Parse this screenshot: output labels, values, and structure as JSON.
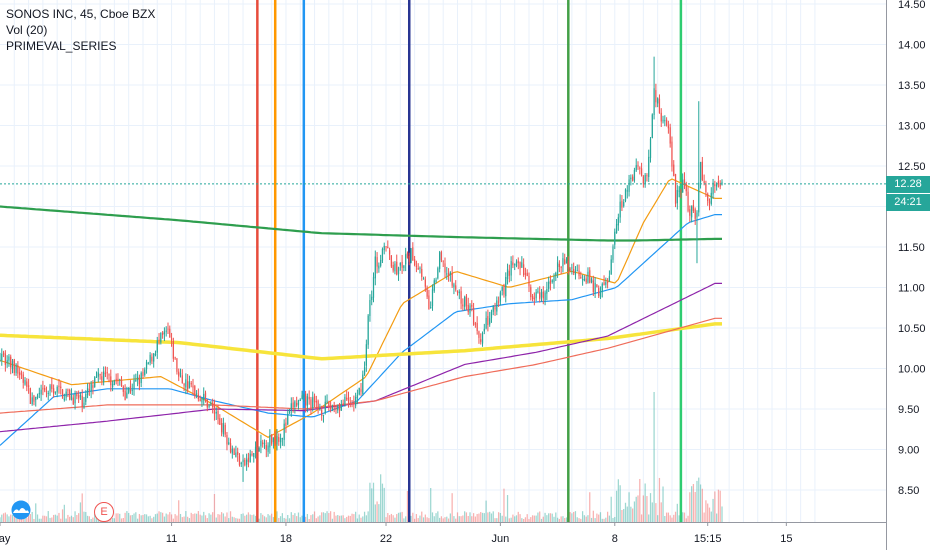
{
  "legend": {
    "symbol_line": "SONOS INC, 45, Cboe BZX",
    "volume_line": "Vol (20)",
    "series_line": "PRIMEVAL_SERIES"
  },
  "price_tags": {
    "last_price": "12.28",
    "countdown": "24:21"
  },
  "icons": {
    "logo": "tradingview-cloud-icon",
    "earnings": "E"
  },
  "colors": {
    "up": "#26a69a",
    "down": "#ef5350",
    "grid": "#e9f1fb",
    "ema_orange": "#f39c12",
    "ema_blue": "#2196f3",
    "sma_green": "#2e9e4e",
    "sma_yellow": "#f7e43b",
    "sma_purple": "#8e24aa",
    "sma_red": "#ef6c5a"
  },
  "chart_data": {
    "type": "candlestick",
    "title": "SONOS INC, 45, Cboe BZX",
    "ylim": [
      8.1,
      14.55
    ],
    "y_ticks": [
      "14.50",
      "14.00",
      "13.50",
      "13.00",
      "12.50",
      "12.00",
      "11.50",
      "11.00",
      "10.50",
      "10.00",
      "9.50",
      "9.00",
      "8.50"
    ],
    "x_ticks": [
      {
        "label": "May",
        "bar": 0
      },
      {
        "label": "11",
        "bar": 96
      },
      {
        "label": "18",
        "bar": 160
      },
      {
        "label": "22",
        "bar": 216
      },
      {
        "label": "Jun",
        "bar": 280
      },
      {
        "label": "8",
        "bar": 344
      },
      {
        "label": "15:15",
        "bar": 396
      },
      {
        "label": "15",
        "bar": 440
      }
    ],
    "bars_visible": 404,
    "anchors": [
      [
        0,
        10.2
      ],
      [
        12,
        9.9
      ],
      [
        18,
        9.6
      ],
      [
        30,
        9.75
      ],
      [
        46,
        9.6
      ],
      [
        56,
        9.9
      ],
      [
        66,
        9.85
      ],
      [
        70,
        9.7
      ],
      [
        80,
        9.9
      ],
      [
        88,
        10.3
      ],
      [
        94,
        10.45
      ],
      [
        100,
        9.9
      ],
      [
        110,
        9.7
      ],
      [
        118,
        9.55
      ],
      [
        124,
        9.3
      ],
      [
        130,
        9.0
      ],
      [
        136,
        8.8
      ],
      [
        142,
        8.95
      ],
      [
        150,
        9.1
      ],
      [
        158,
        9.2
      ],
      [
        164,
        9.55
      ],
      [
        172,
        9.6
      ],
      [
        180,
        9.5
      ],
      [
        190,
        9.55
      ],
      [
        200,
        9.6
      ],
      [
        204,
        10.0
      ],
      [
        206,
        10.6
      ],
      [
        210,
        11.3
      ],
      [
        216,
        11.45
      ],
      [
        222,
        11.2
      ],
      [
        230,
        11.4
      ],
      [
        236,
        11.2
      ],
      [
        240,
        10.7
      ],
      [
        246,
        11.35
      ],
      [
        252,
        11.1
      ],
      [
        258,
        10.85
      ],
      [
        264,
        10.7
      ],
      [
        268,
        10.3
      ],
      [
        272,
        10.55
      ],
      [
        276,
        10.7
      ],
      [
        280,
        10.85
      ],
      [
        286,
        11.3
      ],
      [
        292,
        11.25
      ],
      [
        298,
        10.9
      ],
      [
        304,
        10.85
      ],
      [
        310,
        11.2
      ],
      [
        316,
        11.3
      ],
      [
        322,
        11.2
      ],
      [
        328,
        11.15
      ],
      [
        334,
        10.95
      ],
      [
        340,
        11.05
      ],
      [
        346,
        11.9
      ],
      [
        350,
        12.2
      ],
      [
        356,
        12.5
      ],
      [
        362,
        12.3
      ],
      [
        366,
        13.4
      ],
      [
        370,
        13.1
      ],
      [
        374,
        12.9
      ],
      [
        378,
        12.1
      ],
      [
        382,
        12.3
      ],
      [
        386,
        11.9
      ],
      [
        390,
        11.95
      ],
      [
        392,
        12.5
      ],
      [
        396,
        12.05
      ],
      [
        400,
        12.28
      ]
    ],
    "wick_spikes": [
      {
        "bar": 366,
        "high": 13.85
      },
      {
        "bar": 391,
        "high": 13.3
      },
      {
        "bar": 390,
        "low": 11.3
      },
      {
        "bar": 136,
        "low": 8.6
      }
    ],
    "series": [
      {
        "key": "ema_orange",
        "points": [
          [
            0,
            10.1
          ],
          [
            40,
            9.8
          ],
          [
            90,
            9.9
          ],
          [
            120,
            9.55
          ],
          [
            150,
            9.15
          ],
          [
            175,
            9.45
          ],
          [
            205,
            9.9
          ],
          [
            225,
            10.8
          ],
          [
            255,
            11.2
          ],
          [
            285,
            11.0
          ],
          [
            320,
            11.2
          ],
          [
            345,
            11.05
          ],
          [
            360,
            11.8
          ],
          [
            375,
            12.35
          ],
          [
            390,
            12.2
          ],
          [
            400,
            12.1
          ]
        ]
      },
      {
        "key": "ema_blue",
        "points": [
          [
            0,
            9.05
          ],
          [
            30,
            9.65
          ],
          [
            60,
            9.75
          ],
          [
            95,
            9.75
          ],
          [
            120,
            9.6
          ],
          [
            150,
            9.45
          ],
          [
            175,
            9.4
          ],
          [
            200,
            9.6
          ],
          [
            225,
            10.2
          ],
          [
            255,
            10.7
          ],
          [
            285,
            10.8
          ],
          [
            320,
            10.85
          ],
          [
            345,
            11.0
          ],
          [
            365,
            11.4
          ],
          [
            385,
            11.8
          ],
          [
            400,
            11.9
          ]
        ]
      },
      {
        "key": "sma_green",
        "points": [
          [
            0,
            12.0
          ],
          [
            100,
            11.83
          ],
          [
            180,
            11.67
          ],
          [
            260,
            11.62
          ],
          [
            340,
            11.58
          ],
          [
            355,
            11.58
          ],
          [
            400,
            11.6
          ]
        ]
      },
      {
        "key": "sma_yellow",
        "points": [
          [
            0,
            10.41
          ],
          [
            100,
            10.32
          ],
          [
            180,
            10.12
          ],
          [
            260,
            10.22
          ],
          [
            340,
            10.37
          ],
          [
            400,
            10.55
          ]
        ]
      },
      {
        "key": "sma_purple",
        "points": [
          [
            0,
            9.22
          ],
          [
            60,
            9.35
          ],
          [
            120,
            9.5
          ],
          [
            170,
            9.48
          ],
          [
            210,
            9.6
          ],
          [
            260,
            10.05
          ],
          [
            300,
            10.2
          ],
          [
            340,
            10.4
          ],
          [
            400,
            11.05
          ]
        ]
      },
      {
        "key": "sma_red",
        "points": [
          [
            0,
            9.45
          ],
          [
            60,
            9.55
          ],
          [
            120,
            9.55
          ],
          [
            170,
            9.5
          ],
          [
            210,
            9.6
          ],
          [
            260,
            9.9
          ],
          [
            300,
            10.05
          ],
          [
            340,
            10.25
          ],
          [
            400,
            10.62
          ]
        ]
      }
    ],
    "vertical_markers": [
      {
        "bar": 144,
        "color": "#e74c3c"
      },
      {
        "bar": 154,
        "color": "#ff9800"
      },
      {
        "bar": 170,
        "color": "#2196f3"
      },
      {
        "bar": 229,
        "color": "#283593"
      },
      {
        "bar": 318,
        "color": "#43a047"
      },
      {
        "bar": 381,
        "color": "#2ecc71"
      }
    ],
    "last_price": 12.28
  }
}
